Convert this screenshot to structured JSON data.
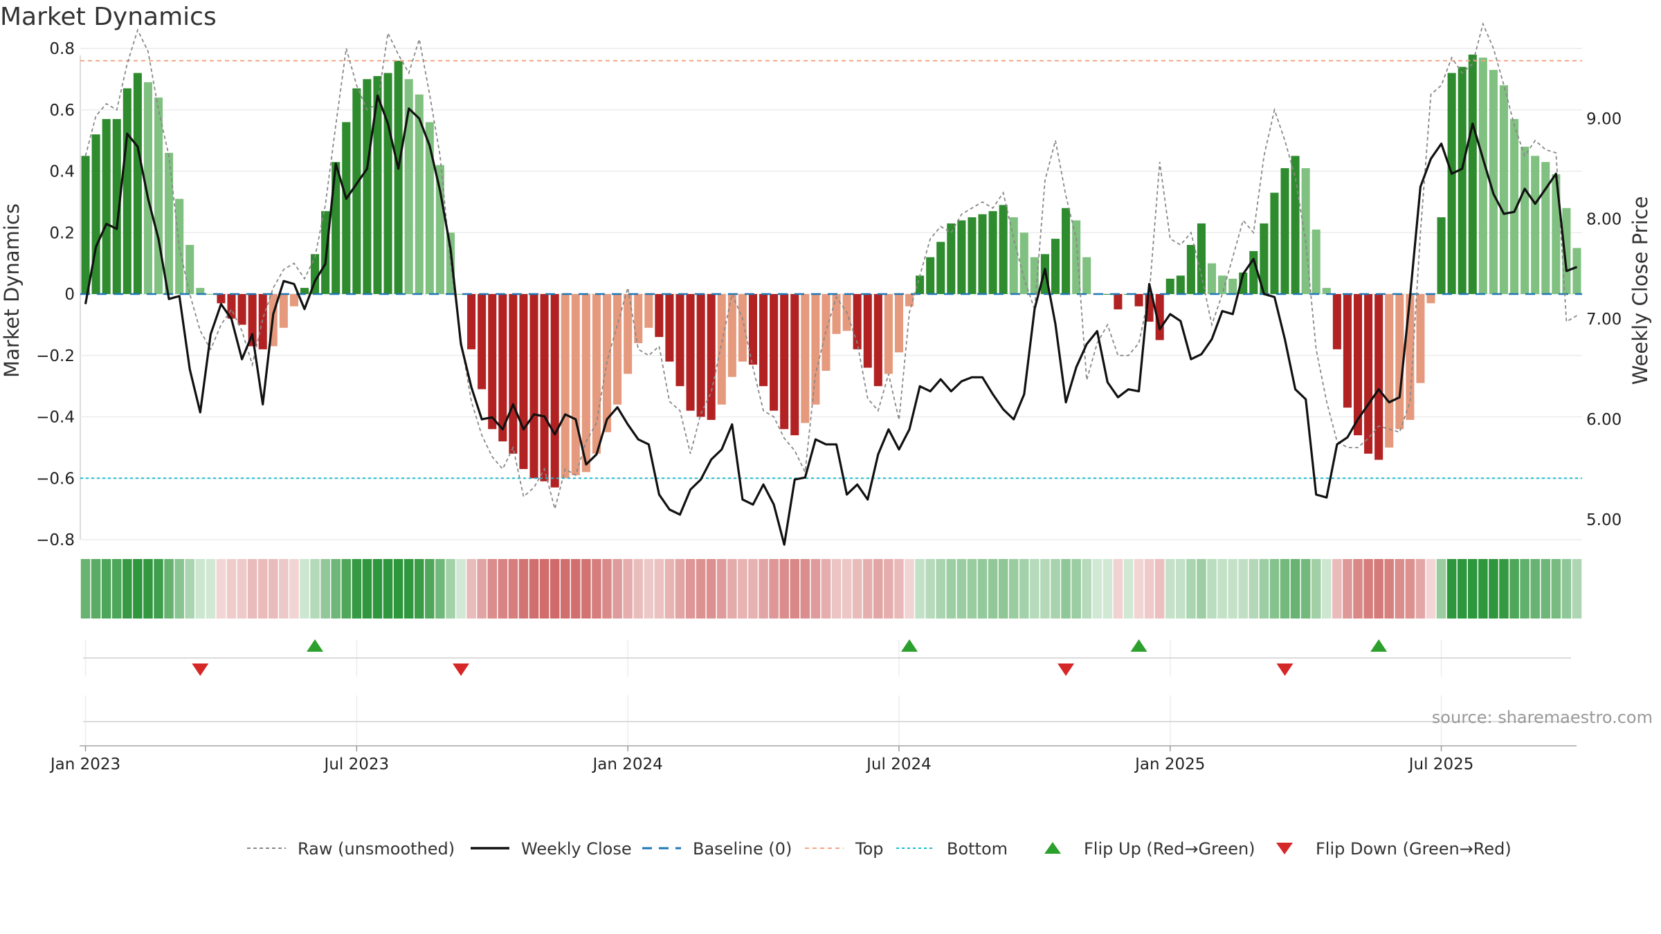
{
  "title": "Market Dynamics",
  "source_note": "source: sharemaestro.com",
  "colors": {
    "strong_green": "#2e8b2e",
    "light_green": "#80c080",
    "strong_red": "#b22222",
    "light_red": "#e59a7e",
    "weekly_close": "#111111",
    "raw": "#888888",
    "baseline": "#1f77b4",
    "top": "#f4a582",
    "bottom": "#17becf",
    "flip_up": "#2ca02c",
    "flip_down": "#d62728"
  },
  "chart_data": {
    "type": "bar",
    "title": "Market Dynamics",
    "ylabel": "Market Dynamics",
    "y2label": "Weekly Close Price",
    "ylim": [
      -0.8,
      0.8
    ],
    "y2lim": [
      4.8,
      9.7
    ],
    "y_ticks": [
      0.8,
      0.6,
      0.4,
      0.2,
      0,
      -0.2,
      -0.4,
      -0.6,
      -0.8
    ],
    "y_tick_labels": [
      "0.8",
      "0.6",
      "0.4",
      "0.2",
      "0",
      "−0.2",
      "−0.4",
      "−0.6",
      "−0.8"
    ],
    "y2_ticks": [
      9.0,
      8.0,
      7.0,
      6.0,
      5.0
    ],
    "y2_tick_labels": [
      "9.00",
      "8.00",
      "7.00",
      "6.00",
      "5.00"
    ],
    "x_ticks": [
      {
        "label": "Jan 2023",
        "week": 1
      },
      {
        "label": "Jul 2023",
        "week": 27
      },
      {
        "label": "Jan 2024",
        "week": 53
      },
      {
        "label": "Jul 2024",
        "week": 79
      },
      {
        "label": "Jan 2025",
        "week": 105
      },
      {
        "label": "Jul 2025",
        "week": 131
      }
    ],
    "top_level": 0.76,
    "bottom_level": -0.6,
    "baseline": 0,
    "dynamics": [
      0.45,
      0.52,
      0.57,
      0.57,
      0.67,
      0.72,
      0.69,
      0.64,
      0.46,
      0.31,
      0.16,
      0.02,
      0,
      -0.03,
      -0.08,
      -0.1,
      -0.17,
      -0.18,
      -0.17,
      -0.11,
      -0.04,
      0.02,
      0.13,
      0.27,
      0.43,
      0.56,
      0.67,
      0.7,
      0.71,
      0.72,
      0.76,
      0.7,
      0.65,
      0.56,
      0.42,
      0.2,
      0,
      -0.18,
      -0.31,
      -0.44,
      -0.48,
      -0.52,
      -0.57,
      -0.6,
      -0.61,
      -0.63,
      -0.6,
      -0.59,
      -0.58,
      -0.52,
      -0.45,
      -0.36,
      -0.26,
      -0.16,
      -0.11,
      -0.14,
      -0.22,
      -0.3,
      -0.38,
      -0.4,
      -0.41,
      -0.36,
      -0.27,
      -0.22,
      -0.23,
      -0.3,
      -0.38,
      -0.44,
      -0.46,
      -0.42,
      -0.36,
      -0.25,
      -0.13,
      -0.12,
      -0.18,
      -0.24,
      -0.3,
      -0.26,
      -0.19,
      -0.04,
      0.06,
      0.12,
      0.17,
      0.23,
      0.24,
      0.25,
      0.26,
      0.27,
      0.29,
      0.25,
      0.2,
      0.12,
      0.13,
      0.18,
      0.28,
      0.24,
      0.12,
      0,
      0,
      -0.05,
      0,
      -0.04,
      -0.09,
      -0.15,
      0.05,
      0.06,
      0.16,
      0.23,
      0.1,
      0.06,
      0.05,
      0.07,
      0.14,
      0.23,
      0.33,
      0.41,
      0.45,
      0.41,
      0.21,
      0.02,
      -0.18,
      -0.37,
      -0.46,
      -0.52,
      -0.54,
      -0.5,
      -0.44,
      -0.41,
      -0.29,
      -0.03,
      0.25,
      0.72,
      0.74,
      0.78,
      0.77,
      0.73,
      0.68,
      0.57,
      0.48,
      0.45,
      0.43,
      0.39,
      0.28,
      0.15
    ],
    "raw": [
      0.45,
      0.58,
      0.62,
      0.6,
      0.75,
      0.86,
      0.79,
      0.6,
      0.45,
      0.15,
      0.0,
      -0.12,
      -0.18,
      -0.1,
      -0.05,
      -0.12,
      -0.23,
      -0.08,
      0.02,
      0.08,
      0.1,
      0.05,
      0.12,
      0.29,
      0.55,
      0.8,
      0.68,
      0.6,
      0.62,
      0.85,
      0.78,
      0.72,
      0.83,
      0.65,
      0.45,
      0.1,
      -0.15,
      -0.35,
      -0.46,
      -0.53,
      -0.57,
      -0.5,
      -0.66,
      -0.63,
      -0.57,
      -0.7,
      -0.57,
      -0.59,
      -0.48,
      -0.42,
      -0.22,
      -0.1,
      0.02,
      -0.18,
      -0.2,
      -0.17,
      -0.35,
      -0.38,
      -0.52,
      -0.39,
      -0.32,
      -0.16,
      0.0,
      -0.08,
      -0.24,
      -0.38,
      -0.4,
      -0.47,
      -0.51,
      -0.58,
      -0.26,
      -0.12,
      -0.01,
      -0.06,
      -0.16,
      -0.34,
      -0.38,
      -0.26,
      -0.41,
      -0.06,
      0.06,
      0.18,
      0.22,
      0.2,
      0.26,
      0.28,
      0.3,
      0.28,
      0.33,
      0.18,
      0.05,
      -0.05,
      0.37,
      0.5,
      0.32,
      0.18,
      -0.28,
      -0.16,
      -0.1,
      -0.2,
      -0.2,
      -0.16,
      0.0,
      0.43,
      0.18,
      0.16,
      0.2,
      0.06,
      -0.1,
      0.0,
      0.12,
      0.24,
      0.2,
      0.45,
      0.6,
      0.5,
      0.38,
      0.17,
      -0.18,
      -0.35,
      -0.48,
      -0.5,
      -0.5,
      -0.47,
      -0.43,
      -0.44,
      -0.45,
      -0.35,
      0.2,
      0.65,
      0.68,
      0.77,
      0.72,
      0.75,
      0.88,
      0.8,
      0.68,
      0.55,
      0.45,
      0.5,
      0.47,
      0.46,
      -0.09,
      -0.07
    ],
    "weekly_close": [
      7.15,
      7.72,
      7.95,
      7.9,
      8.85,
      8.72,
      8.2,
      7.8,
      7.2,
      7.23,
      6.5,
      6.07,
      6.85,
      7.15,
      7.0,
      6.6,
      6.85,
      6.15,
      7.05,
      7.38,
      7.35,
      7.1,
      7.38,
      7.55,
      8.55,
      8.2,
      8.35,
      8.5,
      9.23,
      8.95,
      8.5,
      9.1,
      9.0,
      8.73,
      8.28,
      7.7,
      6.75,
      6.32,
      6.0,
      6.02,
      5.9,
      6.15,
      5.9,
      6.05,
      6.03,
      5.85,
      6.05,
      6.0,
      5.55,
      5.65,
      6.0,
      6.12,
      5.95,
      5.8,
      5.75,
      5.25,
      5.1,
      5.05,
      5.3,
      5.4,
      5.6,
      5.7,
      5.95,
      5.2,
      5.15,
      5.35,
      5.15,
      4.75,
      5.4,
      5.42,
      5.8,
      5.75,
      5.75,
      5.25,
      5.35,
      5.2,
      5.65,
      5.9,
      5.7,
      5.9,
      6.33,
      6.28,
      6.4,
      6.28,
      6.38,
      6.42,
      6.42,
      6.25,
      6.1,
      6.0,
      6.25,
      7.1,
      7.5,
      6.95,
      6.17,
      6.52,
      6.75,
      6.88,
      6.37,
      6.22,
      6.3,
      6.28,
      7.35,
      6.9,
      7.05,
      6.98,
      6.6,
      6.65,
      6.8,
      7.08,
      7.05,
      7.45,
      7.6,
      7.25,
      7.22,
      6.8,
      6.3,
      6.2,
      5.25,
      5.22,
      5.75,
      5.82,
      6.0,
      6.15,
      6.3,
      6.17,
      6.22,
      7.22,
      8.32,
      8.6,
      8.75,
      8.45,
      8.5,
      8.95,
      8.6,
      8.25,
      8.05,
      8.07,
      8.3,
      8.15,
      8.3,
      8.45,
      7.48,
      7.52
    ]
  },
  "flips": {
    "up": [
      {
        "week": 23
      },
      {
        "week": 80
      },
      {
        "week": 102
      },
      {
        "week": 125
      }
    ],
    "down": [
      {
        "week": 12
      },
      {
        "week": 37
      },
      {
        "week": 95
      },
      {
        "week": 116
      }
    ]
  },
  "legend": [
    {
      "key": "raw",
      "label": "Raw (unsmoothed)"
    },
    {
      "key": "close",
      "label": "Weekly Close"
    },
    {
      "key": "baseline",
      "label": "Baseline (0)"
    },
    {
      "key": "top",
      "label": "Top"
    },
    {
      "key": "bottom",
      "label": "Bottom"
    },
    {
      "key": "flip_up",
      "label": "Flip Up (Red→Green)"
    },
    {
      "key": "flip_down",
      "label": "Flip Down (Green→Red)"
    }
  ]
}
